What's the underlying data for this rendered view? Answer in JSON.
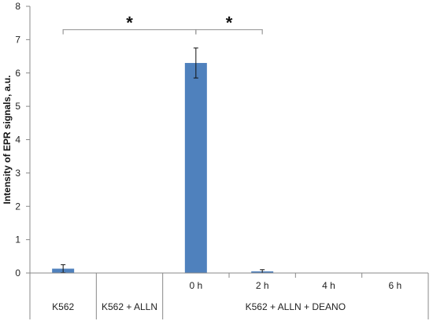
{
  "chart_data": {
    "type": "bar",
    "title": "",
    "ylabel": "Intensity of EPR signals, a.u.",
    "xlabel": "",
    "ylim": [
      0,
      8
    ],
    "yticks": [
      0,
      1,
      2,
      3,
      4,
      5,
      6,
      7,
      8
    ],
    "grid": false,
    "bar_color": "#4f81bd",
    "categories": [
      {
        "label": "",
        "group": "K562",
        "value": 0.13,
        "error": 0.12
      },
      {
        "label": "",
        "group": "K562 + ALLN",
        "value": 0,
        "error": 0
      },
      {
        "label": "0 h",
        "group": "K562 + ALLN + DEANO",
        "value": 6.3,
        "error": 0.45
      },
      {
        "label": "2 h",
        "group": "K562 + ALLN + DEANO",
        "value": 0.05,
        "error": 0.05
      },
      {
        "label": "4 h",
        "group": "K562 + ALLN + DEANO",
        "value": 0,
        "error": 0
      },
      {
        "label": "6 h",
        "group": "K562 + ALLN + DEANO",
        "value": 0,
        "error": 0
      }
    ],
    "groups": [
      "K562",
      "K562 + ALLN",
      "K562 + ALLN + DEANO"
    ],
    "annotations": [
      {
        "from": 0,
        "to": 2,
        "y": 7.3,
        "label": "*"
      },
      {
        "from": 2,
        "to": 3,
        "y": 7.3,
        "label": "*"
      }
    ]
  }
}
